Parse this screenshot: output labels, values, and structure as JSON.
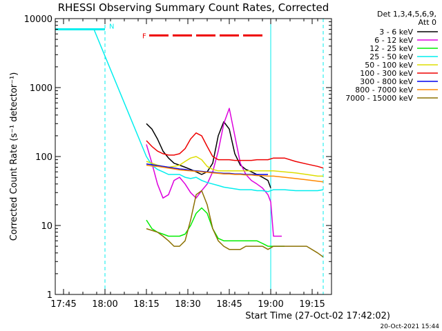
{
  "chart_data": {
    "type": "line",
    "title": "RHESSI Observing Summary Count Rates, Corrected",
    "xlabel": "Start Time (27-Oct-02 17:42:02)",
    "ylabel": "Corrected Count Rate (s⁻¹ detector⁻¹)",
    "y_scale": "log",
    "ylim": [
      1,
      10000
    ],
    "y_ticks": [
      {
        "value": 1,
        "label": "1"
      },
      {
        "value": 10,
        "label": "10"
      },
      {
        "value": 100,
        "label": "100"
      },
      {
        "value": 1000,
        "label": "1000"
      },
      {
        "value": 10000,
        "label": "10000"
      }
    ],
    "xlim": [
      "17:42",
      "19:22"
    ],
    "x_ticks": [
      "17:45",
      "18:00",
      "18:15",
      "18:30",
      "18:45",
      "19:00",
      "19:15"
    ],
    "legend": {
      "header": [
        "Det 1,3,4,5,6,9,",
        "Att 0"
      ],
      "placement": "right"
    },
    "series": [
      {
        "name": "3 - 6 keV",
        "color": "#000000",
        "points": [
          [
            "18:15",
            300
          ],
          [
            "18:17",
            250
          ],
          [
            "18:19",
            180
          ],
          [
            "18:21",
            120
          ],
          [
            "18:23",
            95
          ],
          [
            "18:25",
            80
          ],
          [
            "18:27",
            75
          ],
          [
            "18:29",
            70
          ],
          [
            "18:31",
            65
          ],
          [
            "18:33",
            60
          ],
          [
            "18:35",
            55
          ],
          [
            "18:37",
            60
          ],
          [
            "18:39",
            80
          ],
          [
            "18:41",
            200
          ],
          [
            "18:43",
            320
          ],
          [
            "18:45",
            250
          ],
          [
            "18:47",
            110
          ],
          [
            "18:49",
            75
          ],
          [
            "18:51",
            65
          ],
          [
            "18:53",
            60
          ],
          [
            "18:55",
            55
          ],
          [
            "18:57",
            50
          ],
          [
            "18:59",
            45
          ],
          [
            "19:00",
            35
          ]
        ]
      },
      {
        "name": "6 - 12 keV",
        "color": "#dd00dd",
        "points": [
          [
            "18:15",
            150
          ],
          [
            "18:17",
            80
          ],
          [
            "18:19",
            40
          ],
          [
            "18:21",
            25
          ],
          [
            "18:23",
            28
          ],
          [
            "18:25",
            45
          ],
          [
            "18:27",
            50
          ],
          [
            "18:29",
            40
          ],
          [
            "18:31",
            30
          ],
          [
            "18:33",
            25
          ],
          [
            "18:35",
            32
          ],
          [
            "18:37",
            40
          ],
          [
            "18:39",
            60
          ],
          [
            "18:41",
            120
          ],
          [
            "18:43",
            300
          ],
          [
            "18:45",
            500
          ],
          [
            "18:47",
            200
          ],
          [
            "18:49",
            80
          ],
          [
            "18:51",
            55
          ],
          [
            "18:53",
            45
          ],
          [
            "18:55",
            40
          ],
          [
            "18:57",
            35
          ],
          [
            "18:59",
            28
          ],
          [
            "19:00",
            22
          ],
          [
            "19:01",
            7
          ],
          [
            "19:04",
            7
          ]
        ]
      },
      {
        "name": "12 - 25 keV",
        "color": "#00ee00",
        "points": [
          [
            "18:15",
            12
          ],
          [
            "18:17",
            9
          ],
          [
            "18:19",
            8
          ],
          [
            "18:21",
            7.5
          ],
          [
            "18:23",
            7
          ],
          [
            "18:25",
            7
          ],
          [
            "18:27",
            7
          ],
          [
            "18:29",
            7.5
          ],
          [
            "18:31",
            10
          ],
          [
            "18:33",
            15
          ],
          [
            "18:35",
            18
          ],
          [
            "18:37",
            15
          ],
          [
            "18:39",
            9
          ],
          [
            "18:41",
            6.5
          ],
          [
            "18:43",
            6
          ],
          [
            "18:45",
            6
          ],
          [
            "18:47",
            6
          ],
          [
            "18:49",
            6
          ],
          [
            "18:51",
            6
          ],
          [
            "18:53",
            6
          ],
          [
            "18:55",
            6
          ],
          [
            "18:57",
            5.5
          ],
          [
            "18:59",
            5
          ],
          [
            "19:01",
            5
          ],
          [
            "19:05",
            5
          ]
        ]
      },
      {
        "name": "25 - 50 keV",
        "color": "#00eeee",
        "points": [
          [
            "17:42",
            7000
          ],
          [
            "17:56",
            7000
          ],
          [
            "18:15",
            100
          ],
          [
            "18:17",
            75
          ],
          [
            "18:19",
            65
          ],
          [
            "18:21",
            60
          ],
          [
            "18:23",
            55
          ],
          [
            "18:25",
            55
          ],
          [
            "18:27",
            55
          ],
          [
            "18:29",
            50
          ],
          [
            "18:31",
            48
          ],
          [
            "18:33",
            50
          ],
          [
            "18:35",
            45
          ],
          [
            "18:37",
            42
          ],
          [
            "18:39",
            40
          ],
          [
            "18:41",
            38
          ],
          [
            "18:43",
            36
          ],
          [
            "18:45",
            35
          ],
          [
            "18:47",
            34
          ],
          [
            "18:49",
            33
          ],
          [
            "18:51",
            33
          ],
          [
            "18:53",
            33
          ],
          [
            "18:55",
            32
          ],
          [
            "18:57",
            32
          ],
          [
            "18:59",
            31
          ],
          [
            "19:01",
            33
          ],
          [
            "19:05",
            33
          ],
          [
            "19:09",
            32
          ],
          [
            "19:13",
            32
          ],
          [
            "19:17",
            32
          ],
          [
            "19:19",
            33
          ]
        ]
      },
      {
        "name": "50 - 100 keV",
        "color": "#dddd00",
        "points": [
          [
            "18:15",
            85
          ],
          [
            "18:17",
            80
          ],
          [
            "18:19",
            75
          ],
          [
            "18:21",
            72
          ],
          [
            "18:23",
            70
          ],
          [
            "18:25",
            72
          ],
          [
            "18:27",
            75
          ],
          [
            "18:29",
            85
          ],
          [
            "18:31",
            95
          ],
          [
            "18:33",
            100
          ],
          [
            "18:35",
            90
          ],
          [
            "18:37",
            72
          ],
          [
            "18:39",
            65
          ],
          [
            "18:41",
            62
          ],
          [
            "18:43",
            62
          ],
          [
            "18:45",
            62
          ],
          [
            "18:47",
            62
          ],
          [
            "18:49",
            62
          ],
          [
            "18:51",
            62
          ],
          [
            "18:53",
            62
          ],
          [
            "18:55",
            62
          ],
          [
            "18:57",
            62
          ],
          [
            "18:59",
            62
          ],
          [
            "19:01",
            62
          ],
          [
            "19:05",
            60
          ],
          [
            "19:09",
            58
          ],
          [
            "19:13",
            55
          ],
          [
            "19:17",
            52
          ],
          [
            "19:19",
            52
          ]
        ]
      },
      {
        "name": "100 - 300 keV",
        "color": "#ee0000",
        "points": [
          [
            "18:15",
            170
          ],
          [
            "18:17",
            140
          ],
          [
            "18:19",
            120
          ],
          [
            "18:21",
            110
          ],
          [
            "18:23",
            105
          ],
          [
            "18:25",
            105
          ],
          [
            "18:27",
            110
          ],
          [
            "18:29",
            130
          ],
          [
            "18:31",
            180
          ],
          [
            "18:33",
            220
          ],
          [
            "18:35",
            200
          ],
          [
            "18:37",
            140
          ],
          [
            "18:39",
            100
          ],
          [
            "18:41",
            90
          ],
          [
            "18:43",
            90
          ],
          [
            "18:45",
            90
          ],
          [
            "18:47",
            88
          ],
          [
            "18:49",
            88
          ],
          [
            "18:51",
            88
          ],
          [
            "18:53",
            88
          ],
          [
            "18:55",
            90
          ],
          [
            "18:57",
            90
          ],
          [
            "18:59",
            90
          ],
          [
            "19:01",
            95
          ],
          [
            "19:05",
            95
          ],
          [
            "19:09",
            85
          ],
          [
            "19:13",
            78
          ],
          [
            "19:17",
            72
          ],
          [
            "19:19",
            68
          ]
        ]
      },
      {
        "name": "300 - 800 keV",
        "color": "#0000ee",
        "points": [
          [
            "18:15",
            78
          ],
          [
            "18:17",
            76
          ],
          [
            "18:19",
            74
          ],
          [
            "18:21",
            72
          ],
          [
            "18:23",
            70
          ],
          [
            "18:25",
            68
          ],
          [
            "18:27",
            66
          ],
          [
            "18:29",
            65
          ],
          [
            "18:31",
            63
          ],
          [
            "18:33",
            62
          ],
          [
            "18:35",
            61
          ],
          [
            "18:37",
            60
          ],
          [
            "18:39",
            59
          ],
          [
            "18:41",
            58
          ],
          [
            "18:43",
            57
          ],
          [
            "18:45",
            57
          ],
          [
            "18:47",
            56
          ],
          [
            "18:49",
            56
          ],
          [
            "18:51",
            55
          ],
          [
            "18:53",
            55
          ],
          [
            "18:55",
            55
          ],
          [
            "18:57",
            55
          ],
          [
            "18:59",
            55
          ]
        ]
      },
      {
        "name": "800 - 7000 keV",
        "color": "#ff8800",
        "points": [
          [
            "18:15",
            75
          ],
          [
            "18:17",
            73
          ],
          [
            "18:19",
            72
          ],
          [
            "18:21",
            70
          ],
          [
            "18:23",
            68
          ],
          [
            "18:25",
            66
          ],
          [
            "18:27",
            64
          ],
          [
            "18:29",
            63
          ],
          [
            "18:31",
            62
          ],
          [
            "18:33",
            61
          ],
          [
            "18:35",
            60
          ],
          [
            "18:37",
            59
          ],
          [
            "18:39",
            58
          ],
          [
            "18:41",
            57
          ],
          [
            "18:43",
            56
          ],
          [
            "18:45",
            56
          ],
          [
            "18:47",
            55
          ],
          [
            "18:49",
            55
          ],
          [
            "18:51",
            54
          ],
          [
            "18:53",
            54
          ],
          [
            "18:55",
            53
          ],
          [
            "18:57",
            53
          ],
          [
            "18:59",
            52
          ],
          [
            "19:01",
            52
          ],
          [
            "19:05",
            50
          ],
          [
            "19:09",
            48
          ],
          [
            "19:13",
            46
          ],
          [
            "19:17",
            44
          ],
          [
            "19:19",
            43
          ]
        ]
      },
      {
        "name": "7000 - 15000 keV",
        "color": "#8b7000",
        "points": [
          [
            "18:15",
            9
          ],
          [
            "18:17",
            8.5
          ],
          [
            "18:19",
            8
          ],
          [
            "18:21",
            7
          ],
          [
            "18:23",
            6
          ],
          [
            "18:25",
            5
          ],
          [
            "18:27",
            5
          ],
          [
            "18:29",
            6
          ],
          [
            "18:31",
            12
          ],
          [
            "18:33",
            28
          ],
          [
            "18:35",
            32
          ],
          [
            "18:37",
            20
          ],
          [
            "18:39",
            9
          ],
          [
            "18:41",
            6
          ],
          [
            "18:43",
            5
          ],
          [
            "18:45",
            4.5
          ],
          [
            "18:47",
            4.5
          ],
          [
            "18:49",
            4.5
          ],
          [
            "18:51",
            5
          ],
          [
            "18:53",
            5
          ],
          [
            "18:55",
            5
          ],
          [
            "18:57",
            5
          ],
          [
            "18:59",
            4.5
          ],
          [
            "19:01",
            5
          ],
          [
            "19:05",
            5
          ],
          [
            "19:09",
            5
          ],
          [
            "19:13",
            5
          ],
          [
            "19:17",
            4
          ],
          [
            "19:19",
            3.5
          ]
        ]
      }
    ],
    "annotations": [
      {
        "label": "N",
        "time_start": "17:42",
        "time_end": "18:00",
        "color": "#00eeee"
      },
      {
        "label": "F",
        "time_start": "18:16",
        "time_end": "18:58",
        "color": "#ee0000"
      }
    ],
    "vertical_markers": [
      {
        "time": "18:00",
        "style": "dashed",
        "color": "#00eeee"
      },
      {
        "time": "19:00",
        "style": "solid",
        "color": "#00eeee"
      },
      {
        "time": "19:19",
        "style": "dashed",
        "color": "#00eeee"
      }
    ],
    "timestamp": "20-Oct-2021 15:44"
  }
}
